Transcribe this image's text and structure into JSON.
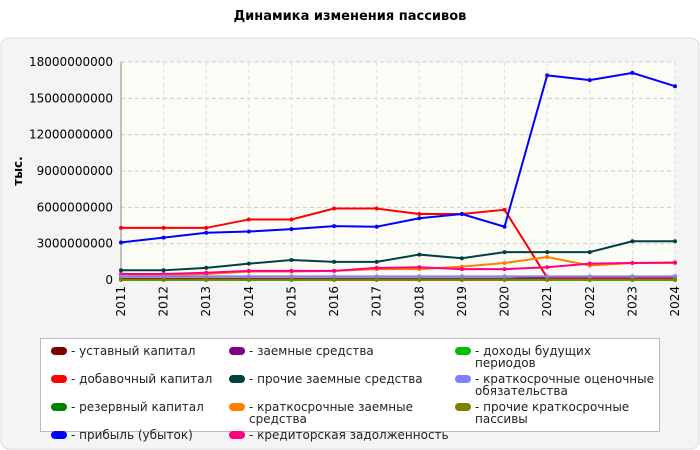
{
  "chart_data": {
    "type": "line",
    "title": "Динамика изменения пассивов",
    "ylabel": "тыс.",
    "x": [
      "2011",
      "2012",
      "2013",
      "2014",
      "2015",
      "2016",
      "2017",
      "2018",
      "2019",
      "2020",
      "2021",
      "2022",
      "2023",
      "2024"
    ],
    "ylim": [
      0,
      18000000000
    ],
    "yticks": [
      0,
      3000000000,
      6000000000,
      9000000000,
      12000000000,
      15000000000,
      18000000000
    ],
    "grid": true,
    "series": [
      {
        "name": "- уставный капитал",
        "color": "#800000",
        "values": [
          100000000,
          100000000,
          100000000,
          100000000,
          100000000,
          100000000,
          100000000,
          100000000,
          100000000,
          100000000,
          200000000,
          200000000,
          250000000,
          300000000
        ]
      },
      {
        "name": "- добавочный капитал",
        "color": "#ff0000",
        "values": [
          4300000000,
          4300000000,
          4300000000,
          5000000000,
          5000000000,
          5900000000,
          5900000000,
          5450000000,
          5450000000,
          5800000000,
          200000000,
          200000000,
          200000000,
          200000000
        ]
      },
      {
        "name": "- резервный капитал",
        "color": "#008000",
        "values": [
          20000000,
          20000000,
          20000000,
          20000000,
          20000000,
          20000000,
          20000000,
          20000000,
          20000000,
          20000000,
          20000000,
          20000000,
          20000000,
          20000000
        ]
      },
      {
        "name": "- прибыль (убыток)",
        "color": "#0000ff",
        "values": [
          3100000000,
          3500000000,
          3900000000,
          4000000000,
          4200000000,
          4450000000,
          4400000000,
          5100000000,
          5450000000,
          4400000000,
          16900000000,
          16500000000,
          17100000000,
          16000000000
        ]
      },
      {
        "name": "- заемные средства",
        "color": "#800080",
        "values": [
          50000000,
          50000000,
          50000000,
          50000000,
          50000000,
          50000000,
          50000000,
          50000000,
          50000000,
          50000000,
          50000000,
          50000000,
          50000000,
          50000000
        ]
      },
      {
        "name": "- прочие заемные средства",
        "color": "#004040",
        "values": [
          800000000,
          800000000,
          1000000000,
          1350000000,
          1650000000,
          1500000000,
          1500000000,
          2100000000,
          1800000000,
          2300000000,
          2300000000,
          2300000000,
          3200000000,
          3200000000
        ]
      },
      {
        "name": "- краткосрочные заемные средства",
        "color": "#ff8000",
        "values": [
          300000000,
          400000000,
          500000000,
          700000000,
          700000000,
          750000000,
          900000000,
          900000000,
          1100000000,
          1400000000,
          1900000000,
          1200000000,
          1400000000,
          1400000000
        ]
      },
      {
        "name": "- кредиторская задолженность",
        "color": "#ff0080",
        "values": [
          500000000,
          500000000,
          600000000,
          750000000,
          750000000,
          750000000,
          1000000000,
          1050000000,
          900000000,
          900000000,
          1050000000,
          1350000000,
          1400000000,
          1450000000
        ]
      },
      {
        "name": "- доходы будущих периодов",
        "color": "#00c000",
        "values": [
          10000000,
          10000000,
          10000000,
          10000000,
          10000000,
          10000000,
          10000000,
          10000000,
          10000000,
          10000000,
          10000000,
          10000000,
          10000000,
          10000000
        ]
      },
      {
        "name": "- краткосрочные оценочные обязательства",
        "color": "#8080ff",
        "values": [
          300000000,
          300000000,
          300000000,
          300000000,
          300000000,
          300000000,
          300000000,
          300000000,
          300000000,
          300000000,
          300000000,
          300000000,
          300000000,
          300000000
        ]
      },
      {
        "name": "- прочие краткосрочные пассивы",
        "color": "#808000",
        "values": [
          30000000,
          30000000,
          30000000,
          30000000,
          30000000,
          30000000,
          30000000,
          30000000,
          30000000,
          30000000,
          30000000,
          30000000,
          30000000,
          30000000
        ]
      }
    ]
  }
}
